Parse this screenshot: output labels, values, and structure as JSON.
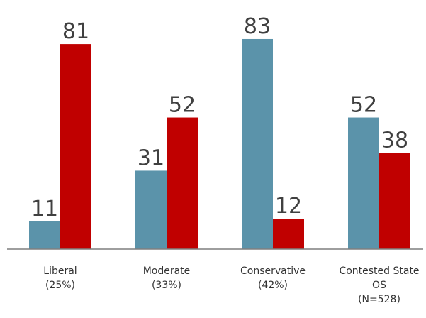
{
  "chart_data": {
    "type": "bar",
    "categories": [
      [
        "Liberal",
        "(25%)"
      ],
      [
        "Moderate",
        "(33%)"
      ],
      [
        "Conservative",
        "(42%)"
      ],
      [
        "Contested State",
        "OS",
        "(N=528)"
      ]
    ],
    "series": [
      {
        "values": [
          11,
          31,
          83,
          52
        ],
        "color": "#5b93aa"
      },
      {
        "values": [
          81,
          52,
          12,
          38
        ],
        "color": "#c00000"
      }
    ],
    "ylim": [
      0,
      90
    ],
    "axis_color": "#7f7f7f",
    "title": "",
    "xlabel": "",
    "ylabel": "",
    "grid": false,
    "legend": "none"
  }
}
